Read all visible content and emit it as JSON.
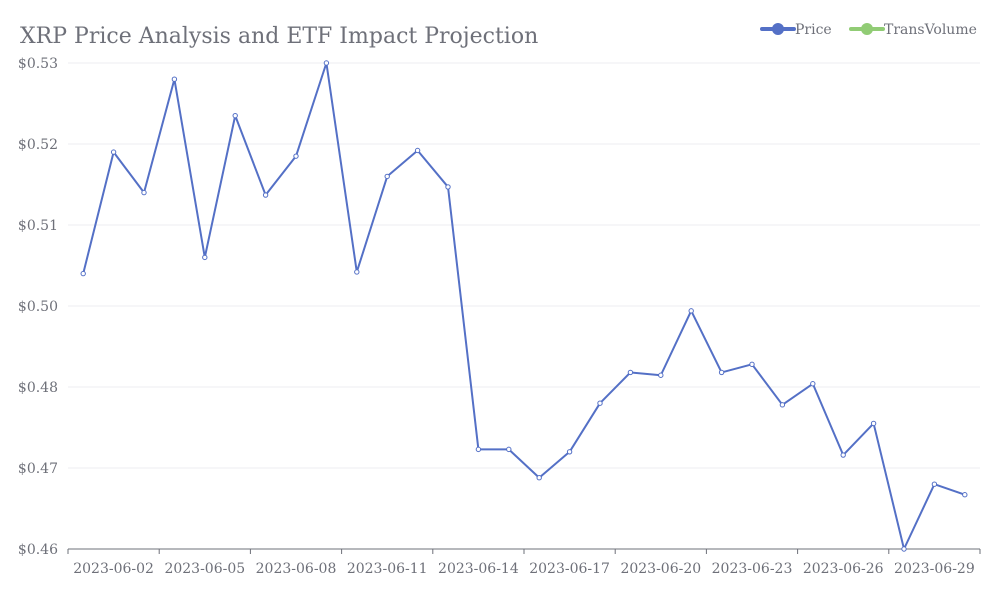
{
  "chart_data": {
    "type": "line",
    "title": "XRP Price Analysis and ETF Impact Projection",
    "xlabel": "",
    "ylabel": "",
    "legend_position": "top-right",
    "legend": [
      {
        "name": "Price",
        "color": "#5470c6"
      },
      {
        "name": "TransVolume",
        "color": "#91cc75"
      }
    ],
    "categories": [
      "2023-06-01",
      "2023-06-02",
      "2023-06-03",
      "2023-06-04",
      "2023-06-05",
      "2023-06-06",
      "2023-06-07",
      "2023-06-08",
      "2023-06-09",
      "2023-06-10",
      "2023-06-11",
      "2023-06-12",
      "2023-06-13",
      "2023-06-14",
      "2023-06-15",
      "2023-06-16",
      "2023-06-17",
      "2023-06-18",
      "2023-06-19",
      "2023-06-20",
      "2023-06-21",
      "2023-06-22",
      "2023-06-23",
      "2023-06-24",
      "2023-06-25",
      "2023-06-26",
      "2023-06-27",
      "2023-06-28",
      "2023-06-29",
      "2023-06-30"
    ],
    "x_tick_labels": [
      "2023-06-02",
      "2023-06-05",
      "2023-06-08",
      "2023-06-11",
      "2023-06-14",
      "2023-06-17",
      "2023-06-20",
      "2023-06-23",
      "2023-06-26",
      "2023-06-29"
    ],
    "y_ticks": [
      {
        "value": 0.46,
        "label": "$0.46"
      },
      {
        "value": 0.47,
        "label": "$0.47"
      },
      {
        "value": 0.48,
        "label": "$0.48"
      },
      {
        "value": 0.5,
        "label": "$0.50"
      },
      {
        "value": 0.51,
        "label": "$0.51"
      },
      {
        "value": 0.52,
        "label": "$0.52"
      },
      {
        "value": 0.53,
        "label": "$0.53"
      }
    ],
    "series": [
      {
        "name": "Price",
        "color": "#5470c6",
        "values": [
          0.504,
          0.519,
          0.514,
          0.528,
          0.506,
          0.5235,
          0.5137,
          0.5185,
          0.53,
          0.5042,
          0.516,
          0.5192,
          0.5147,
          0.4723,
          0.4723,
          0.4688,
          0.472,
          0.478,
          0.4836,
          0.4829,
          0.4988,
          0.4836,
          0.4856,
          0.4778,
          0.4808,
          0.4716,
          0.4755,
          0.46,
          0.468,
          0.4667
        ]
      }
    ],
    "grid": true
  }
}
